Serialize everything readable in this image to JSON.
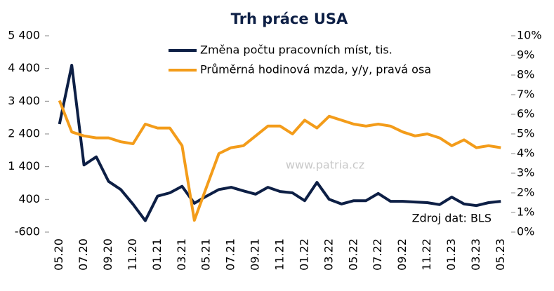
{
  "chart_data": {
    "type": "line",
    "title": "Trh práce USA",
    "categories": [
      "05.20",
      null,
      "07.20",
      null,
      "09.20",
      null,
      "11.20",
      null,
      "01.21",
      null,
      "03.21",
      null,
      "05.21",
      null,
      "07.21",
      null,
      "09.21",
      null,
      "11.21",
      null,
      "01.22",
      null,
      "03.22",
      null,
      "05.22",
      null,
      "07.22",
      null,
      "09.22",
      null,
      "11.22",
      null,
      "01.23",
      null,
      "03.23",
      null,
      "05.23"
    ],
    "series": [
      {
        "name": "Změna počtu pracovních míst, tis.",
        "color": "#0d1f45",
        "values": [
          2700,
          4500,
          1450,
          1700,
          950,
          700,
          250,
          -250,
          500,
          600,
          800,
          280,
          500,
          700,
          770,
          660,
          560,
          770,
          640,
          600,
          360,
          920,
          400,
          260,
          360,
          360,
          580,
          340,
          340,
          320,
          300,
          240,
          470,
          260,
          210,
          300,
          340
        ]
      },
      {
        "name": "Průměrná hodinová mzda, y/y, pravá osa",
        "color": "#f39c1a",
        "axis": "y2",
        "values": [
          6.7,
          5.1,
          4.9,
          4.8,
          4.8,
          4.6,
          4.5,
          5.5,
          5.3,
          5.3,
          4.4,
          0.6,
          2.3,
          4.0,
          4.3,
          4.4,
          4.9,
          5.4,
          5.4,
          5.0,
          5.7,
          5.3,
          5.9,
          5.7,
          5.5,
          5.4,
          5.5,
          5.4,
          5.1,
          4.9,
          5.0,
          4.8,
          4.4,
          4.7,
          4.3,
          4.4,
          4.3
        ]
      }
    ],
    "ylim": [
      -600,
      5400
    ],
    "yticks": [
      -600,
      400,
      {
        "value": 1400,
        "label": "1 400"
      },
      {
        "value": 2400,
        "label": "2 400"
      },
      {
        "value": 3400,
        "label": "3 400"
      },
      {
        "value": 4400,
        "label": "4 400"
      },
      {
        "value": 5400,
        "label": "5 400"
      }
    ],
    "y2lim": [
      0,
      10
    ],
    "y2ticks": [
      {
        "value": 0,
        "label": "0%"
      },
      {
        "value": 1,
        "label": "1%"
      },
      {
        "value": 2,
        "label": "2%"
      },
      {
        "value": 3,
        "label": "3%"
      },
      {
        "value": 4,
        "label": "4%"
      },
      {
        "value": 5,
        "label": "5%"
      },
      {
        "value": 6,
        "label": "6%"
      },
      {
        "value": 7,
        "label": "7%"
      },
      {
        "value": 8,
        "label": "8%"
      },
      {
        "value": 9,
        "label": "9%"
      },
      {
        "value": 10,
        "label": "10%"
      }
    ],
    "annotations": [
      "www.patria.cz",
      "Zdroj dat: BLS"
    ]
  }
}
